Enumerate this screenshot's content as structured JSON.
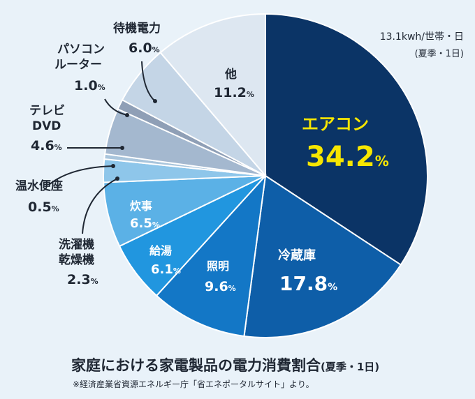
{
  "chart_data": {
    "type": "pie",
    "title": "家庭における家電製品の電力消費割合",
    "title_suffix": "(夏季・1日)",
    "total_label": "13.1kwh/世帯・日",
    "period_label": "(夏季・1日)",
    "source_note": "※経済産業省資源エネルギー庁「省エネポータルサイト」より。",
    "unit": "%",
    "slices": [
      {
        "label": "エアコン",
        "value": 34.2,
        "color": "#0b3466"
      },
      {
        "label": "冷蔵庫",
        "value": 17.8,
        "color": "#0e5ea8"
      },
      {
        "label": "照明",
        "value": 9.6,
        "color": "#1377c6"
      },
      {
        "label": "給湯",
        "value": 6.1,
        "color": "#2196df"
      },
      {
        "label": "炊事",
        "value": 6.5,
        "color": "#5bb1e6"
      },
      {
        "label": "洗濯機乾燥機",
        "value": 2.3,
        "color": "#8ec6ea"
      },
      {
        "label": "温水便座",
        "value": 0.5,
        "color": "#a9c5dc"
      },
      {
        "label": "テレビDVD",
        "value": 4.6,
        "color": "#a4b8cf"
      },
      {
        "label": "パソコンルーター",
        "value": 1.0,
        "color": "#8f9fb6"
      },
      {
        "label": "待機電力",
        "value": 6.0,
        "color": "#c4d5e6"
      },
      {
        "label": "他",
        "value": 11.2,
        "color": "#dde7f1"
      }
    ]
  },
  "labels": {
    "aircon": {
      "name": "エアコン",
      "value": "34.2",
      "unit": "%"
    },
    "fridge": {
      "name": "冷蔵庫",
      "value": "17.8",
      "unit": "%"
    },
    "light": {
      "name": "照明",
      "value": "9.6",
      "unit": "%"
    },
    "kyuto": {
      "name": "給湯",
      "value": "6.1",
      "unit": "%"
    },
    "suiji": {
      "name": "炊事",
      "value": "6.5",
      "unit": "%"
    },
    "sentaku": {
      "name1": "洗濯機",
      "name2": "乾燥機",
      "value": "2.3",
      "unit": "%"
    },
    "benza": {
      "name": "温水便座",
      "value": "0.5",
      "unit": "%"
    },
    "tv": {
      "name1": "テレビ",
      "name2": "DVD",
      "value": "4.6",
      "unit": "%"
    },
    "pc": {
      "name1": "パソコン",
      "name2": "ルーター",
      "value": "1.0",
      "unit": "%"
    },
    "standby": {
      "name": "待機電力",
      "value": "6.0",
      "unit": "%"
    },
    "other": {
      "name": "他",
      "value": "11.2",
      "unit": "%"
    }
  }
}
